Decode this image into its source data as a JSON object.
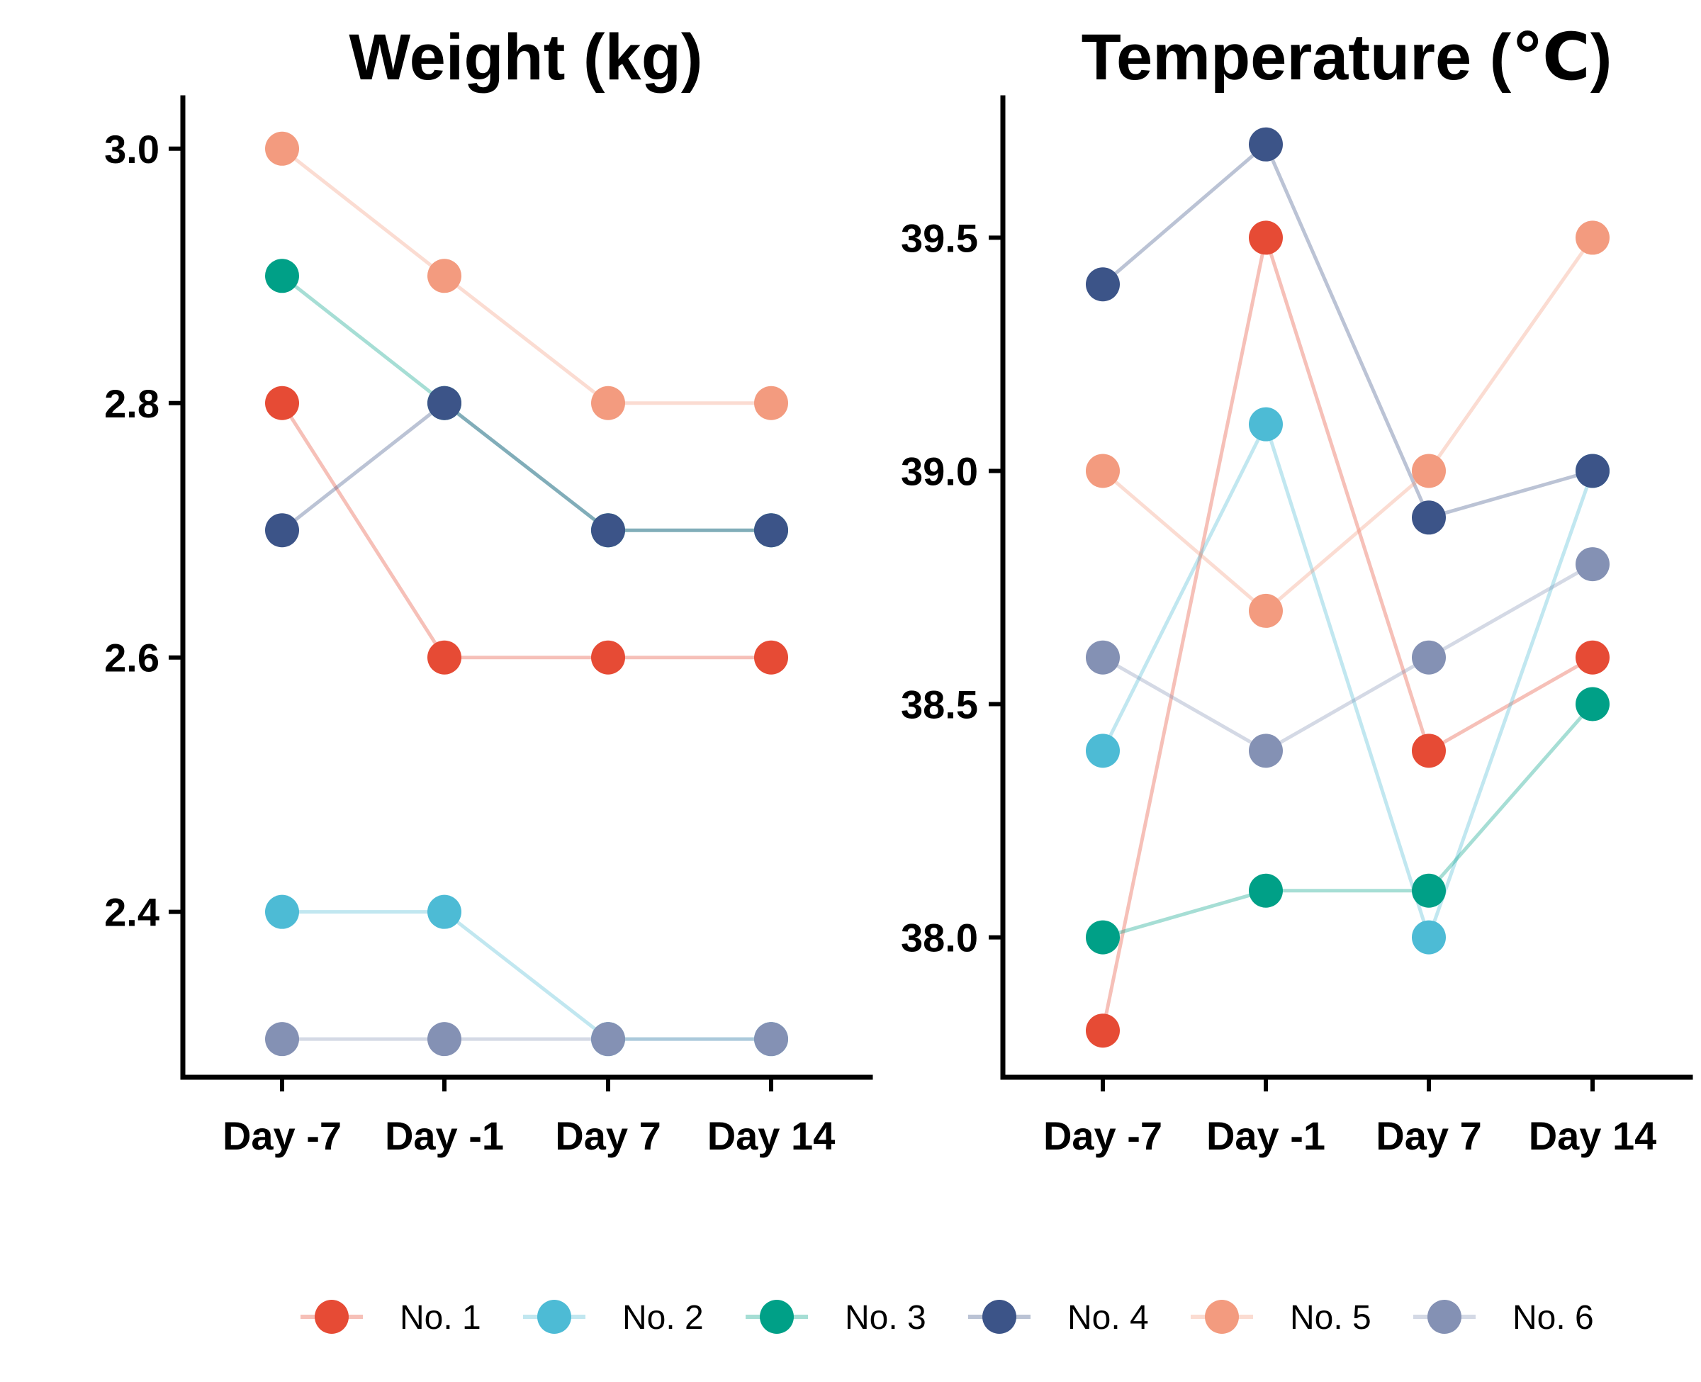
{
  "chart_data": [
    {
      "type": "line",
      "title": "Weight (kg)",
      "xlabel": "",
      "ylabel": "",
      "categories": [
        "Day -7",
        "Day -1",
        "Day 7",
        "Day 14"
      ],
      "ylim": [
        2.27,
        3.04
      ],
      "yticks": [
        2.4,
        2.6,
        2.8,
        3.0
      ],
      "ytick_labels": [
        "2.4",
        "2.6",
        "2.8",
        "3.0"
      ],
      "grid": false,
      "series": [
        {
          "name": "No. 1",
          "values": [
            2.8,
            2.6,
            2.6,
            2.6
          ]
        },
        {
          "name": "No. 2",
          "values": [
            2.4,
            2.4,
            2.3,
            2.3
          ]
        },
        {
          "name": "No. 3",
          "values": [
            2.9,
            2.8,
            2.7,
            2.7
          ]
        },
        {
          "name": "No. 4",
          "values": [
            2.7,
            2.8,
            2.7,
            2.7
          ]
        },
        {
          "name": "No. 5",
          "values": [
            3.0,
            2.9,
            2.8,
            2.8
          ]
        },
        {
          "name": "No. 6",
          "values": [
            2.3,
            2.3,
            2.3,
            2.3
          ]
        }
      ]
    },
    {
      "type": "line",
      "title": "Temperature (℃)",
      "xlabel": "",
      "ylabel": "",
      "categories": [
        "Day -7",
        "Day -1",
        "Day 7",
        "Day 14"
      ],
      "ylim": [
        37.7,
        39.8
      ],
      "yticks": [
        38.0,
        38.5,
        39.0,
        39.5
      ],
      "ytick_labels": [
        "38.0",
        "38.5",
        "39.0",
        "39.5"
      ],
      "grid": false,
      "series": [
        {
          "name": "No. 1",
          "values": [
            37.8,
            39.5,
            38.4,
            38.6
          ]
        },
        {
          "name": "No. 2",
          "values": [
            38.4,
            39.1,
            38.0,
            39.0
          ]
        },
        {
          "name": "No. 3",
          "values": [
            38.0,
            38.1,
            38.1,
            38.5
          ]
        },
        {
          "name": "No. 4",
          "values": [
            39.4,
            39.7,
            38.9,
            39.0
          ]
        },
        {
          "name": "No. 5",
          "values": [
            39.0,
            38.7,
            39.0,
            39.5
          ]
        },
        {
          "name": "No. 6",
          "values": [
            38.6,
            38.4,
            38.6,
            38.8
          ]
        }
      ]
    }
  ],
  "legend": {
    "placement": "bottom",
    "items": [
      {
        "label": "No. 1",
        "color": "#E64B35"
      },
      {
        "label": "No. 2",
        "color": "#4DBBD5"
      },
      {
        "label": "No. 3",
        "color": "#00A087"
      },
      {
        "label": "No. 4",
        "color": "#3C5488"
      },
      {
        "label": "No. 5",
        "color": "#F39B7F"
      },
      {
        "label": "No. 6",
        "color": "#8491B4"
      }
    ]
  },
  "style": {
    "line_opacity": 0.35,
    "marker_opacity": 1.0
  }
}
